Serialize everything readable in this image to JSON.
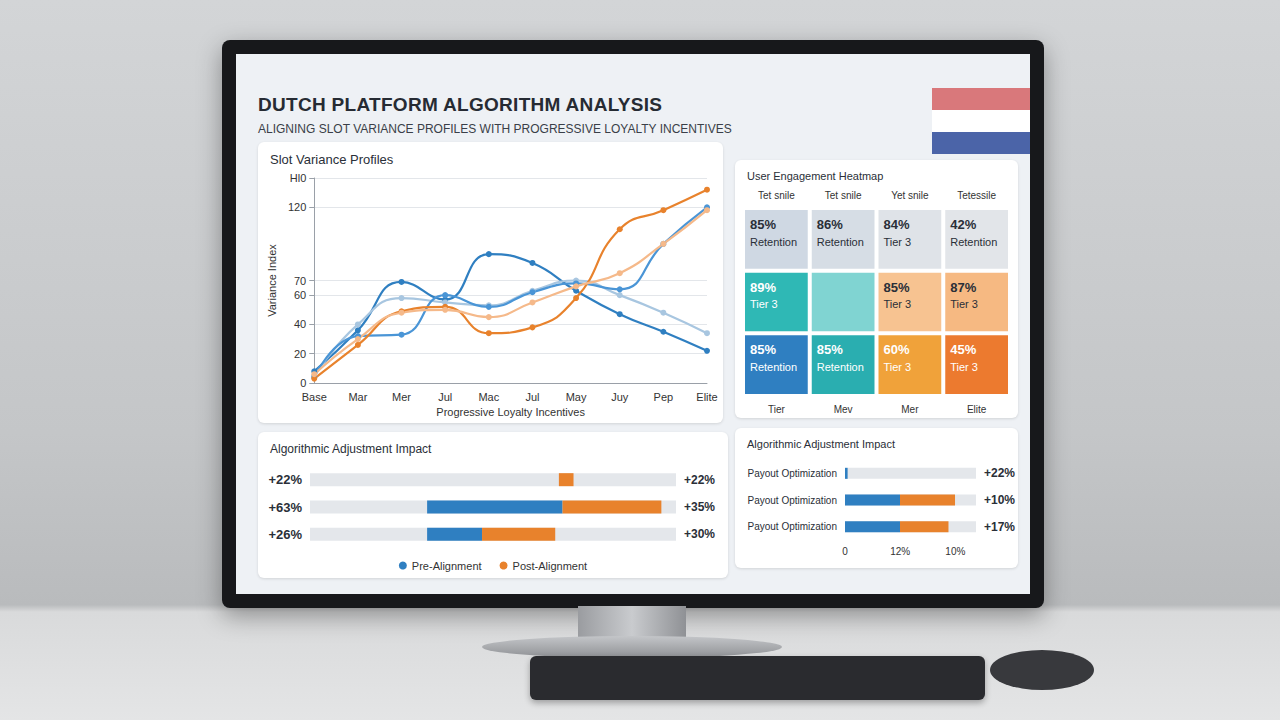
{
  "dashboard": {
    "title": "DUTCH PLATFORM ALGORITHM ANALYSIS",
    "subtitle": "ALIGNING SLOT VARIANCE PROFILES WITH PROGRESSIVE LOYALTY INCENTIVES"
  },
  "chart_data": [
    {
      "type": "line",
      "title": "Slot Variance Profiles",
      "x_label": "Progressive Loyalty Incentives",
      "y_label": "Variance Index",
      "categories": [
        "Base",
        "Mar",
        "Mer",
        "Jul",
        "Mac",
        "Jul",
        "May",
        "Juy",
        "Pep",
        "Elite"
      ],
      "series": [
        {
          "color": "#2f7fc1",
          "values": [
            8,
            36,
            69,
            57,
            88,
            82,
            63,
            47,
            35,
            22
          ]
        },
        {
          "color": "#a8c6e0",
          "values": [
            5,
            40,
            58,
            55,
            53,
            63,
            70,
            60,
            48,
            34
          ]
        },
        {
          "color": "#4a95d6",
          "values": [
            4,
            32,
            33,
            60,
            52,
            62,
            68,
            64,
            95,
            120
          ]
        },
        {
          "color": "#e8822c",
          "values": [
            3,
            26,
            49,
            52,
            34,
            38,
            58,
            105,
            118,
            132
          ]
        },
        {
          "color": "#f5b98a",
          "values": [
            6,
            30,
            48,
            50,
            45,
            55,
            66,
            75,
            95,
            118
          ]
        }
      ],
      "ylim": [
        0,
        140
      ],
      "yticks": [
        0,
        20,
        40,
        60,
        70,
        120,
        {
          "value": 140,
          "label": "Hl0"
        }
      ],
      "grid": true,
      "marker": "circle"
    },
    {
      "type": "heatmap",
      "title": "User Engagement Heatmap",
      "columns": [
        "Tet snile",
        "Tet snile",
        "Yet snile",
        "Tetessile"
      ],
      "x_labels": [
        "Tier",
        "Mev",
        "Mer",
        "Elite"
      ],
      "values": [
        [
          85,
          86,
          84,
          42
        ],
        [
          89,
          null,
          85,
          87
        ],
        [
          85,
          85,
          60,
          45
        ]
      ],
      "value_labels": [
        [
          "85%",
          "86%",
          "84%",
          "42%"
        ],
        [
          "89%",
          null,
          "85%",
          "87%"
        ],
        [
          "85%",
          "85%",
          "60%",
          "45%"
        ]
      ],
      "labels": [
        [
          "Retention",
          "Retention",
          "Tier 3",
          "Retention"
        ],
        [
          "Tier 3",
          null,
          "Tier 3",
          "Tier 3"
        ],
        [
          "Retention",
          "Retention",
          "Tier 3",
          "Tier 3"
        ]
      ],
      "colors": [
        [
          "#cfd8e3",
          "#d6dde5",
          "#dfe3e8",
          "#e2e5e9"
        ],
        [
          "#2fb8b5",
          "#80d4d2",
          "#f7c391",
          "#f6b982"
        ],
        [
          "#2f7fc1",
          "#2aaeb0",
          "#f0a23a",
          "#ec7a2f"
        ]
      ]
    },
    {
      "type": "bar",
      "orientation": "horizontal",
      "stacked": true,
      "title": "Algorithmic Adjustment Impact",
      "categories": [
        "+22%",
        "+63%",
        "+26%"
      ],
      "right_labels": [
        "+22%",
        "+35%",
        "+30%"
      ],
      "start": [
        68,
        32,
        32
      ],
      "series": [
        {
          "name": "Pre-Alignment",
          "color": "#2f7fc1",
          "values": [
            0,
            37,
            15
          ]
        },
        {
          "name": "Post-Alignment",
          "color": "#e8822c",
          "values": [
            4,
            27,
            20
          ]
        }
      ],
      "xlim": [
        0,
        100
      ],
      "tick_labels": "y",
      "legend": "bottom"
    },
    {
      "type": "bar",
      "orientation": "horizontal",
      "stacked": true,
      "title": "Algorithmic Adjustment Impact",
      "categories": [
        "Payout Optimization",
        "Payout Optimization",
        "Payout Optimization"
      ],
      "right_labels": [
        "+22%",
        "+10%",
        "+17%"
      ],
      "axis_texts": [
        "0",
        "12%",
        "10%"
      ],
      "series": [
        {
          "color": "#2f7fc1",
          "values": [
            2,
            42,
            42
          ]
        },
        {
          "color": "#e8822c",
          "values": [
            0,
            42,
            37
          ]
        }
      ],
      "xlim": [
        0,
        100
      ],
      "tick_labels": "y"
    }
  ]
}
